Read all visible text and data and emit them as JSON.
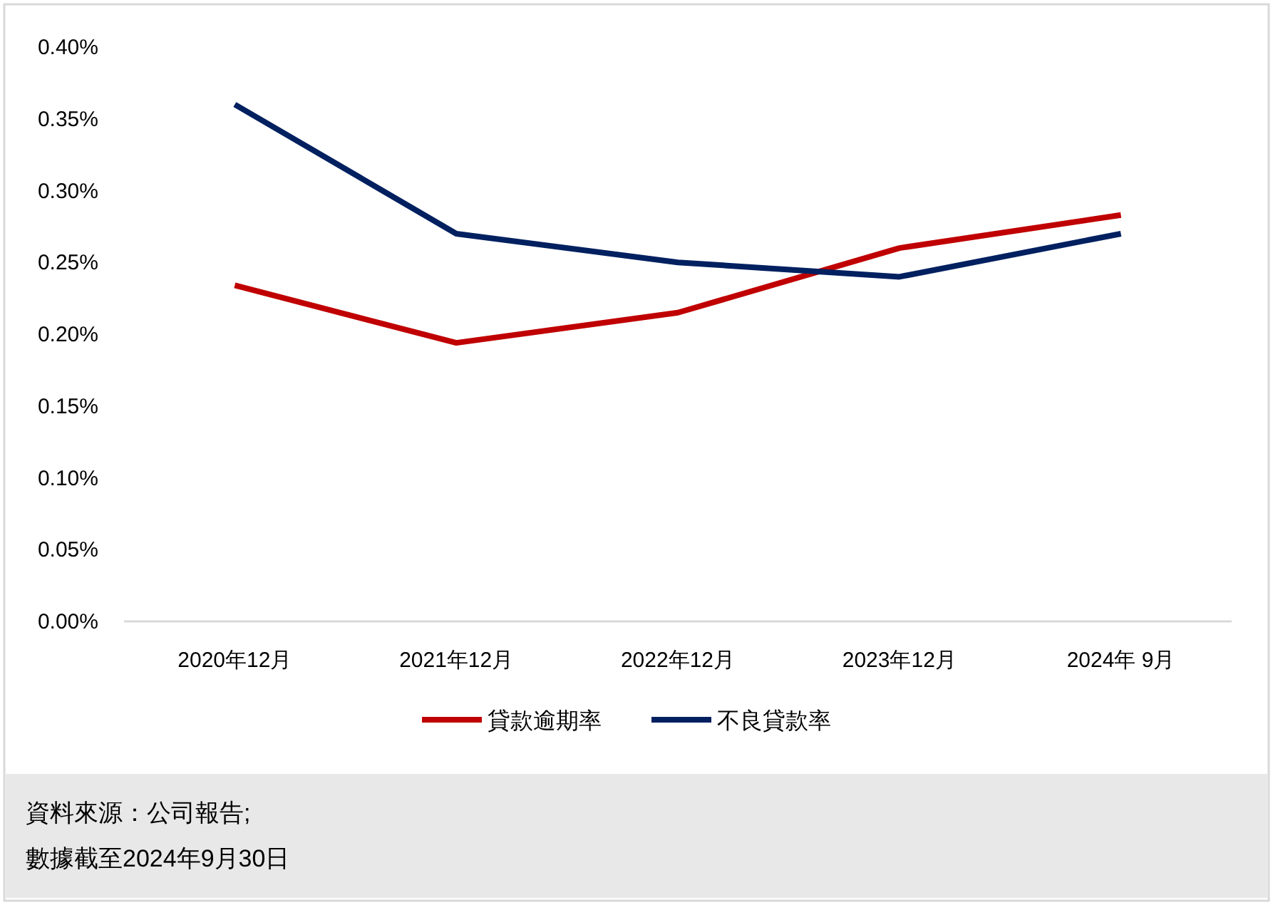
{
  "chart_data": {
    "type": "line",
    "categories": [
      "2020年12月",
      "2021年12月",
      "2022年12月",
      "2023年12月",
      "2024年 9月"
    ],
    "series": [
      {
        "name": "貸款逾期率",
        "color": "#c00000",
        "values": [
          0.234,
          0.194,
          0.215,
          0.26,
          0.283
        ]
      },
      {
        "name": "不良貸款率",
        "color": "#002060",
        "values": [
          0.36,
          0.27,
          0.25,
          0.24,
          0.27
        ]
      }
    ],
    "ylim": [
      0,
      0.4
    ],
    "yticks": [
      {
        "value": 0,
        "label": "0.00%"
      },
      {
        "value": 0.05,
        "label": "0.05%"
      },
      {
        "value": 0.1,
        "label": "0.10%"
      },
      {
        "value": 0.15,
        "label": "0.15%"
      },
      {
        "value": 0.2,
        "label": "0.20%"
      },
      {
        "value": 0.25,
        "label": "0.25%"
      },
      {
        "value": 0.3,
        "label": "0.30%"
      },
      {
        "value": 0.35,
        "label": "0.35%"
      },
      {
        "value": 0.4,
        "label": "0.40%"
      }
    ],
    "legend": "bottom",
    "annotations": [
      "資料來源：公司報告;",
      "數據截至2024年9月30日"
    ]
  }
}
